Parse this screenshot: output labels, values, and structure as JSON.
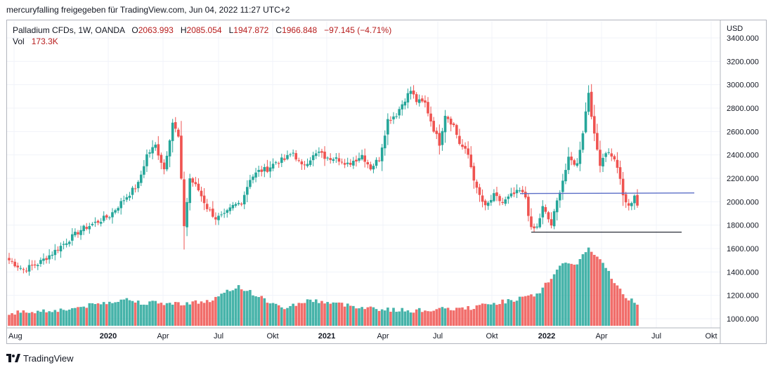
{
  "header": {
    "title": "mercuryfalling freigegeben für TradingView.com, Jun 04, 2022 11:27 UTC+2"
  },
  "legend": {
    "symbol": "Palladium CFDs, 1W, OANDA",
    "open_label": "O",
    "open": "2063.993",
    "high_label": "H",
    "high": "2085.054",
    "low_label": "L",
    "low": "1947.872",
    "close_label": "C",
    "close": "1966.848",
    "change": "−97.145 (−4.71%)",
    "vol_label": "Vol",
    "vol": "173.3K"
  },
  "price_axis": {
    "currency": "USD",
    "ticks": [
      "3400.000",
      "3200.000",
      "3000.000",
      "2800.000",
      "2600.000",
      "2400.000",
      "2200.000",
      "2000.000",
      "1800.000",
      "1600.000",
      "1400.000",
      "1200.000",
      "1000.000"
    ]
  },
  "time_axis": {
    "ticks": [
      "Aug",
      "2020",
      "Apr",
      "Jul",
      "Okt",
      "2021",
      "Apr",
      "Jul",
      "Okt",
      "2022",
      "Apr",
      "Jul",
      "Okt"
    ]
  },
  "footer": {
    "brand": "TradingView"
  },
  "colors": {
    "up": "#26a69a",
    "down": "#ef5350",
    "up_volume": "#26a69a",
    "down_volume": "#ef5350",
    "trend_line": "#5b6ec7",
    "support_line": "#131722",
    "grid": "#f0f3fa"
  },
  "chart_data": {
    "type": "candlestick",
    "title": "Palladium CFDs, 1W, OANDA",
    "currency": "USD",
    "ylim": [
      1000,
      3400
    ],
    "x_ticks": [
      "Aug",
      "2020",
      "Apr",
      "Jul",
      "Okt",
      "2021",
      "Apr",
      "Jul",
      "Okt",
      "2022",
      "Apr",
      "Jul",
      "Okt"
    ],
    "anchors": [
      {
        "t": 0,
        "c": 1500
      },
      {
        "t": 5,
        "c": 1420
      },
      {
        "t": 10,
        "c": 1470
      },
      {
        "t": 15,
        "c": 1560
      },
      {
        "t": 20,
        "c": 1660
      },
      {
        "t": 25,
        "c": 1760
      },
      {
        "t": 30,
        "c": 1820
      },
      {
        "t": 35,
        "c": 1880
      },
      {
        "t": 40,
        "c": 2020
      },
      {
        "t": 45,
        "c": 2150
      },
      {
        "t": 48,
        "c": 2400
      },
      {
        "t": 51,
        "c": 2480
      },
      {
        "t": 54,
        "c": 2280
      },
      {
        "t": 57,
        "c": 2680
      },
      {
        "t": 59,
        "c": 2550
      },
      {
        "t": 61,
        "c": 1800
      },
      {
        "t": 63,
        "c": 2200
      },
      {
        "t": 66,
        "c": 2100
      },
      {
        "t": 69,
        "c": 1950
      },
      {
        "t": 72,
        "c": 1860
      },
      {
        "t": 75,
        "c": 1880
      },
      {
        "t": 78,
        "c": 1960
      },
      {
        "t": 81,
        "c": 2000
      },
      {
        "t": 84,
        "c": 2200
      },
      {
        "t": 87,
        "c": 2260
      },
      {
        "t": 90,
        "c": 2280
      },
      {
        "t": 93,
        "c": 2340
      },
      {
        "t": 96,
        "c": 2360
      },
      {
        "t": 99,
        "c": 2420
      },
      {
        "t": 102,
        "c": 2300
      },
      {
        "t": 105,
        "c": 2370
      },
      {
        "t": 108,
        "c": 2420
      },
      {
        "t": 111,
        "c": 2360
      },
      {
        "t": 114,
        "c": 2400
      },
      {
        "t": 117,
        "c": 2300
      },
      {
        "t": 120,
        "c": 2350
      },
      {
        "t": 123,
        "c": 2400
      },
      {
        "t": 126,
        "c": 2290
      },
      {
        "t": 129,
        "c": 2370
      },
      {
        "t": 132,
        "c": 2700
      },
      {
        "t": 135,
        "c": 2750
      },
      {
        "t": 138,
        "c": 2880
      },
      {
        "t": 140,
        "c": 2950
      },
      {
        "t": 142,
        "c": 2860
      },
      {
        "t": 145,
        "c": 2840
      },
      {
        "t": 148,
        "c": 2620
      },
      {
        "t": 150,
        "c": 2500
      },
      {
        "t": 152,
        "c": 2750
      },
      {
        "t": 155,
        "c": 2650
      },
      {
        "t": 157,
        "c": 2500
      },
      {
        "t": 160,
        "c": 2400
      },
      {
        "t": 163,
        "c": 2100
      },
      {
        "t": 166,
        "c": 1950
      },
      {
        "t": 169,
        "c": 2050
      },
      {
        "t": 172,
        "c": 1990
      },
      {
        "t": 175,
        "c": 2050
      },
      {
        "t": 178,
        "c": 2090
      },
      {
        "t": 180,
        "c": 2040
      },
      {
        "t": 182,
        "c": 1760
      },
      {
        "t": 184,
        "c": 1780
      },
      {
        "t": 186,
        "c": 1950
      },
      {
        "t": 189,
        "c": 1800
      },
      {
        "t": 192,
        "c": 2100
      },
      {
        "t": 195,
        "c": 2360
      },
      {
        "t": 198,
        "c": 2320
      },
      {
        "t": 200,
        "c": 2600
      },
      {
        "t": 202,
        "c": 2940
      },
      {
        "t": 204,
        "c": 2560
      },
      {
        "t": 206,
        "c": 2330
      },
      {
        "t": 208,
        "c": 2430
      },
      {
        "t": 210,
        "c": 2400
      },
      {
        "t": 212,
        "c": 2300
      },
      {
        "t": 214,
        "c": 2050
      },
      {
        "t": 216,
        "c": 1950
      },
      {
        "t": 218,
        "c": 2060
      },
      {
        "t": 219,
        "c": 1967
      }
    ],
    "volume_peaks": [
      {
        "t": 0,
        "v": 1050
      },
      {
        "t": 20,
        "v": 1080
      },
      {
        "t": 34,
        "v": 1140
      },
      {
        "t": 40,
        "v": 1170
      },
      {
        "t": 46,
        "v": 1140
      },
      {
        "t": 58,
        "v": 1130
      },
      {
        "t": 70,
        "v": 1150
      },
      {
        "t": 80,
        "v": 1280
      },
      {
        "t": 95,
        "v": 1090
      },
      {
        "t": 105,
        "v": 1160
      },
      {
        "t": 120,
        "v": 1110
      },
      {
        "t": 131,
        "v": 1080
      },
      {
        "t": 140,
        "v": 1070
      },
      {
        "t": 160,
        "v": 1090
      },
      {
        "t": 175,
        "v": 1160
      },
      {
        "t": 184,
        "v": 1200
      },
      {
        "t": 192,
        "v": 1450
      },
      {
        "t": 198,
        "v": 1480
      },
      {
        "t": 202,
        "v": 1600
      },
      {
        "t": 208,
        "v": 1440
      },
      {
        "t": 214,
        "v": 1200
      },
      {
        "t": 219,
        "v": 1130
      }
    ],
    "trend_line": {
      "from_price": 2070,
      "to_price": 2075
    },
    "support_line": {
      "price": 1740
    },
    "last_close": 1966.848
  }
}
